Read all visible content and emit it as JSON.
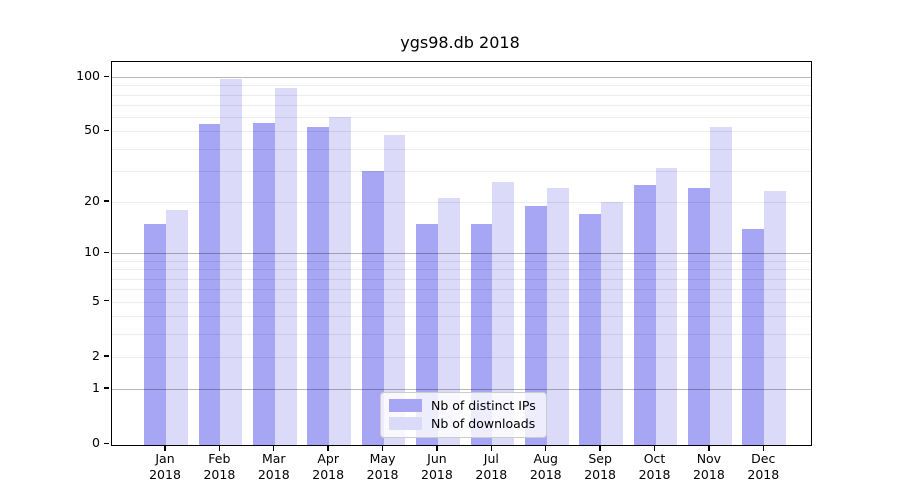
{
  "title": "ygs98.db 2018",
  "chart_data": {
    "type": "bar",
    "title": "ygs98.db 2018",
    "categories": [
      "Jan",
      "Feb",
      "Mar",
      "Apr",
      "May",
      "Jun",
      "Jul",
      "Aug",
      "Sep",
      "Oct",
      "Nov",
      "Dec"
    ],
    "category_year": "2018",
    "series": [
      {
        "name": "Nb of distinct IPs",
        "color": "#a6a6f4",
        "values": [
          15,
          55,
          56,
          53,
          30,
          15,
          15,
          19,
          17,
          25,
          24,
          14
        ]
      },
      {
        "name": "Nb of downloads",
        "color": "#dbdbf9",
        "values": [
          18,
          97,
          87,
          60,
          48,
          21,
          26,
          24,
          20,
          31,
          53,
          23
        ]
      }
    ],
    "xlabel": "",
    "ylabel": "",
    "yscale": "log1p",
    "ylim": [
      0,
      121
    ],
    "y_ticks": [
      0,
      1,
      2,
      5,
      10,
      20,
      50,
      100
    ],
    "y_major_gridlines": [
      1,
      10,
      100
    ],
    "y_minor_gridlines": [
      2,
      3,
      4,
      5,
      6,
      7,
      8,
      9,
      20,
      30,
      40,
      50,
      60,
      70,
      80,
      90
    ],
    "grid": true,
    "legend_position": "lower center"
  }
}
